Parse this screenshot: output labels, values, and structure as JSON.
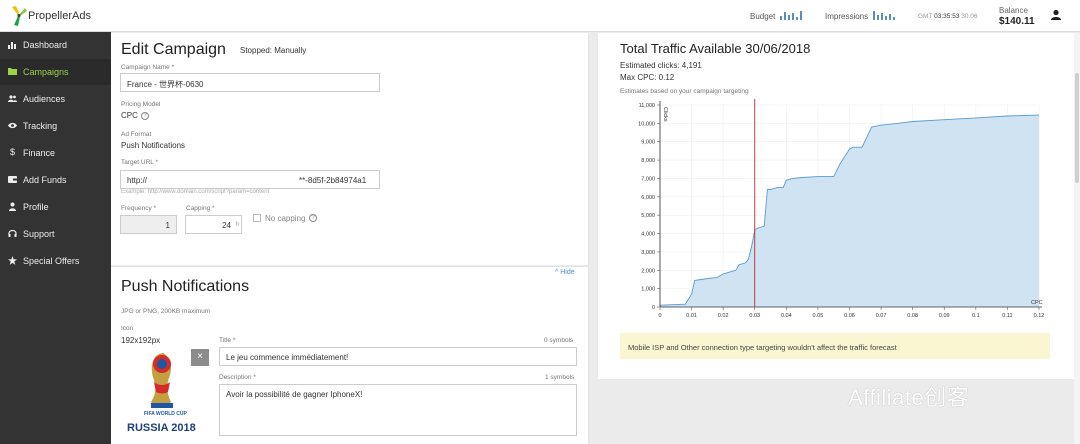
{
  "brand": {
    "name": "PropellerAds"
  },
  "header": {
    "budget_label": "Budget",
    "impressions_label": "Impressions",
    "time_prefix": "GMT",
    "time_value": "03:35:53",
    "time_suffix": "30.06",
    "balance_label": "Balance",
    "balance_value": "$140.11"
  },
  "sidebar": {
    "items": [
      {
        "label": "Dashboard",
        "icon": "bar-chart-icon"
      },
      {
        "label": "Campaigns",
        "icon": "folder-icon",
        "active": true
      },
      {
        "label": "Audiences",
        "icon": "people-icon"
      },
      {
        "label": "Tracking",
        "icon": "eye-icon"
      },
      {
        "label": "Finance",
        "icon": "dollar-icon"
      },
      {
        "label": "Add Funds",
        "icon": "wallet-icon"
      },
      {
        "label": "Profile",
        "icon": "person-icon"
      },
      {
        "label": "Support",
        "icon": "headset-icon"
      },
      {
        "label": "Special Offers",
        "icon": "star-icon"
      }
    ]
  },
  "campaign": {
    "title": "Edit Campaign",
    "status": "Stopped: Manually",
    "name_label": "Campaign Name *",
    "name_value": "France - 世界杯-0630",
    "pricing_label": "Pricing Model",
    "pricing_value": "CPC",
    "format_label": "Ad Format",
    "format_value": "Push Notifications",
    "url_label": "Target URL *",
    "url_value": "http://",
    "url_value_end": "**-8d5f-2b84974a1",
    "url_hint": "Example: http://www.domain.com/script?param=content",
    "frequency_label": "Frequency *",
    "frequency_value": "1",
    "capping_label": "Capping *",
    "capping_value": "24",
    "capping_unit": "h",
    "no_capping_label": "No capping"
  },
  "push": {
    "title": "Push Notifications",
    "hide_label": "^ Hide",
    "format_hint": "JPG or PNG, 200KB maximum",
    "icon_label": "Icon",
    "icon_size": "192x192px",
    "icon_text_top": "FIFA WORLD CUP",
    "icon_text_bottom": "RUSSIA 2018",
    "remove_label": "×",
    "title_label": "Title *",
    "title_count": "0 symbols",
    "title_value": "Le jeu commence immédiatement!",
    "desc_label": "Description *",
    "desc_count": "1 symbols",
    "desc_value": "Avoir la possibilité de gagner IphoneX!"
  },
  "traffic": {
    "title": "Total Traffic Available 30/06/2018",
    "est_clicks": "Estimated clicks: 4,191",
    "max_cpc": "Max CPC: 0.12",
    "note": "Estimates based on your campaign targeting",
    "notice": "Mobile ISP and Other connection type targeting wouldn't affect the traffic forecast"
  },
  "chart_data": {
    "type": "area",
    "ylabel": "Clicks",
    "xlabel": "CPC",
    "xlim": [
      0,
      0.12
    ],
    "ylim": [
      0,
      11000
    ],
    "xticks": [
      "0",
      "0.01",
      "0.02",
      "0.03",
      "0.04",
      "0.05",
      "0.06",
      "0.07",
      "0.08",
      "0.09",
      "0.1",
      "0.11",
      "0.12"
    ],
    "yticks": [
      "0",
      "1,000",
      "2,000",
      "3,000",
      "4,000",
      "5,000",
      "6,000",
      "7,000",
      "8,000",
      "9,000",
      "10,000",
      "11,000"
    ],
    "marker_x": 0.03,
    "x": [
      0,
      0.008,
      0.01,
      0.011,
      0.013,
      0.015,
      0.018,
      0.02,
      0.022,
      0.024,
      0.025,
      0.027,
      0.028,
      0.029,
      0.03,
      0.031,
      0.033,
      0.034,
      0.035,
      0.037,
      0.039,
      0.04,
      0.042,
      0.045,
      0.05,
      0.055,
      0.057,
      0.06,
      0.061,
      0.064,
      0.067,
      0.07,
      0.075,
      0.08,
      0.09,
      0.1,
      0.11,
      0.12
    ],
    "y": [
      100,
      150,
      700,
      1450,
      1500,
      1550,
      1600,
      1800,
      1900,
      2000,
      2300,
      2400,
      2600,
      3300,
      4200,
      4300,
      4400,
      6400,
      6400,
      6500,
      6500,
      6900,
      7000,
      7050,
      7100,
      7100,
      7800,
      8600,
      8700,
      8700,
      9800,
      9900,
      10000,
      10100,
      10200,
      10300,
      10400,
      10450
    ],
    "grid": true,
    "colors": {
      "fill": "#cfe3f3",
      "line": "#5a9bd0",
      "marker": "#c62828"
    }
  },
  "watermark": "Affiliate创客"
}
